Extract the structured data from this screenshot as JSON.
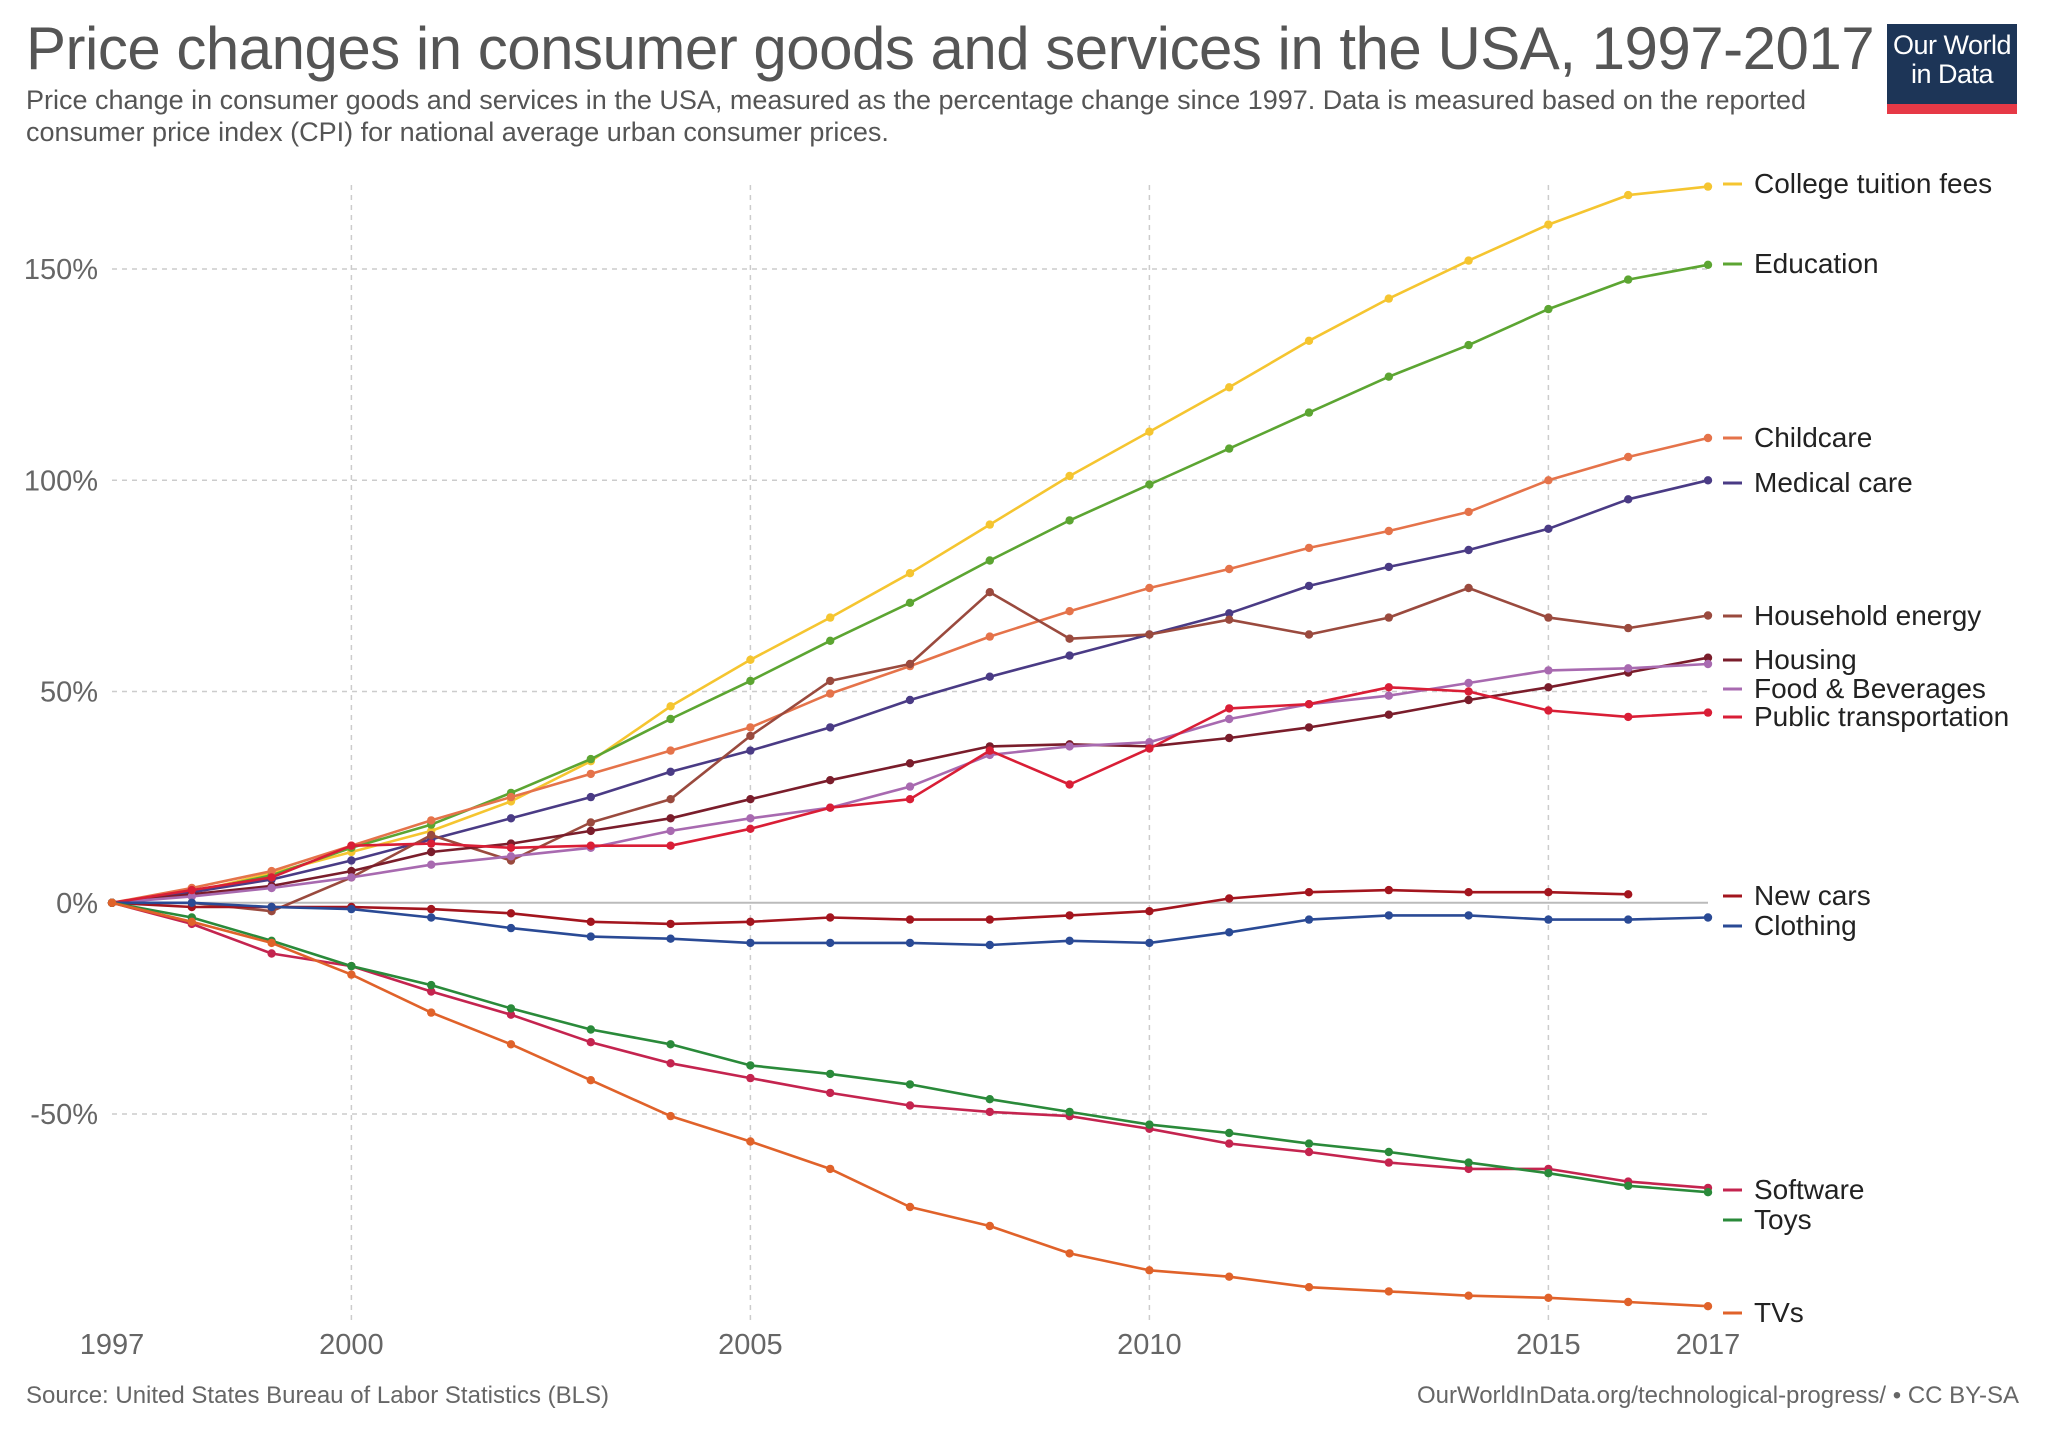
{
  "header": {
    "title": "Price changes in consumer goods and services in the USA, 1997-2017",
    "subtitle": "Price change in consumer goods and services in the USA, measured as the percentage change since 1997. Data is measured based on the reported consumer price index (CPI) for national average urban consumer prices.",
    "logo_line1": "Our World",
    "logo_line2": "in Data"
  },
  "footer": {
    "source": "Source: United States Bureau of Labor Statistics (BLS)",
    "license": "OurWorldInData.org/technological-progress/ • CC BY-SA"
  },
  "colors": {
    "logo_background": "#1d3557",
    "logo_bar": "#e63946",
    "grid": "#cccccc",
    "zero_line": "#bbbbbb"
  },
  "chart_data": {
    "type": "line",
    "title": "Price changes in consumer goods and services in the USA, 1997-2017",
    "xlabel": "",
    "ylabel": "",
    "x": [
      1997,
      1998,
      1999,
      2000,
      2001,
      2002,
      2003,
      2004,
      2005,
      2006,
      2007,
      2008,
      2009,
      2010,
      2011,
      2012,
      2013,
      2014,
      2015,
      2016,
      2017
    ],
    "xlim": [
      1997,
      2017
    ],
    "ylim": [
      -95,
      170
    ],
    "x_ticks": [
      1997,
      2000,
      2005,
      2010,
      2015,
      2017
    ],
    "x_tick_labels": [
      "1997",
      "2000",
      "2005",
      "2010",
      "2015",
      "2017"
    ],
    "y_ticks": [
      -50,
      0,
      50,
      100,
      150
    ],
    "y_tick_labels": [
      "-50%",
      "0%",
      "50%",
      "100%",
      "150%"
    ],
    "grid": true,
    "legend": "right (end-of-line labels)",
    "series": [
      {
        "name": "College tuition fees",
        "color": "#f5c530",
        "values": [
          0,
          2.5,
          7,
          12,
          17,
          24,
          33.5,
          46.5,
          57.5,
          67.5,
          78,
          89.5,
          101,
          111.5,
          122,
          133,
          143,
          152,
          160.5,
          167.5,
          169.5
        ]
      },
      {
        "name": "Education",
        "color": "#5ca532",
        "values": [
          0,
          2.5,
          6.5,
          13,
          18.5,
          26,
          34,
          43.5,
          52.5,
          62,
          71,
          81,
          90.5,
          99,
          107.5,
          116,
          124.5,
          132,
          140.5,
          147.5,
          151
        ]
      },
      {
        "name": "Childcare",
        "color": "#e5734a",
        "values": [
          0,
          3.5,
          7.5,
          13.5,
          19.5,
          25,
          30.5,
          36,
          41.5,
          49.5,
          56,
          63,
          69,
          74.5,
          79,
          84,
          88,
          92.5,
          100,
          105.5,
          110
        ]
      },
      {
        "name": "Medical care",
        "color": "#4a3b85",
        "values": [
          0,
          2.5,
          5.5,
          10,
          15,
          20,
          25,
          31,
          36,
          41.5,
          48,
          53.5,
          58.5,
          63.5,
          68.5,
          75,
          79.5,
          83.5,
          88.5,
          95.5,
          100
        ]
      },
      {
        "name": "Household energy",
        "color": "#9a4a3e",
        "values": [
          0,
          0,
          -2,
          6,
          16,
          10,
          19,
          24.5,
          39.5,
          52.5,
          56.5,
          73.5,
          62.5,
          63.5,
          67,
          63.5,
          67.5,
          74.5,
          67.5,
          65,
          68
        ]
      },
      {
        "name": "Housing",
        "color": "#7a1d2b",
        "values": [
          0,
          2,
          4,
          7.5,
          12,
          14,
          17,
          20,
          24.5,
          29,
          33,
          37,
          37.5,
          37,
          39,
          41.5,
          44.5,
          48,
          51,
          54.5,
          58
        ]
      },
      {
        "name": "Food & Beverages",
        "color": "#a86ab0",
        "values": [
          0,
          1.5,
          3.5,
          6,
          9,
          11,
          13,
          17,
          20,
          22.5,
          27.5,
          35,
          37,
          38,
          43.5,
          47,
          49,
          52,
          55,
          55.5,
          56.5
        ]
      },
      {
        "name": "Public transportation",
        "color": "#d91e36",
        "values": [
          0,
          3,
          6,
          13.5,
          14,
          13,
          13.5,
          13.5,
          17.5,
          22.5,
          24.5,
          36,
          28,
          36.5,
          46,
          47,
          51,
          50,
          45.5,
          44,
          45
        ]
      },
      {
        "name": "New cars",
        "color": "#a3151e",
        "values": [
          0,
          -1,
          -1,
          -1,
          -1.5,
          -2.5,
          -4.5,
          -5,
          -4.5,
          -3.5,
          -4,
          -4,
          -3,
          -2,
          1,
          2.5,
          3,
          2.5,
          2.5,
          2,
          null
        ]
      },
      {
        "name": "Clothing",
        "color": "#2a4a95",
        "values": [
          0,
          0,
          -1,
          -1.5,
          -3.5,
          -6,
          -8,
          -8.5,
          -9.5,
          -9.5,
          -9.5,
          -10,
          -9,
          -9.5,
          -7,
          -4,
          -3,
          -3,
          -4,
          -4,
          -3.5
        ]
      },
      {
        "name": "Software",
        "color": "#c4244f",
        "values": [
          0,
          -5,
          -12,
          -15,
          -21,
          -26.5,
          -33,
          -38,
          -41.5,
          -45,
          -48,
          -49.5,
          -50.5,
          -53.5,
          -57,
          -59,
          -61.5,
          -63,
          -63,
          -66,
          -67.5
        ]
      },
      {
        "name": "Toys",
        "color": "#2a8a3a",
        "values": [
          0,
          -3.5,
          -9,
          -15,
          -19.5,
          -25,
          -30,
          -33.5,
          -38.5,
          -40.5,
          -43,
          -46.5,
          -49.5,
          -52.5,
          -54.5,
          -57,
          -59,
          -61.5,
          -64,
          -67,
          -68.5
        ]
      },
      {
        "name": "TVs",
        "color": "#e0622a",
        "values": [
          0,
          -4.5,
          -9.5,
          -17,
          -26,
          -33.5,
          -42,
          -50.5,
          -56.5,
          -63,
          -72,
          -76.5,
          -83,
          -87,
          -88.5,
          -91,
          -92,
          -93,
          -93.5,
          -94.5,
          -95.5
        ]
      }
    ]
  }
}
